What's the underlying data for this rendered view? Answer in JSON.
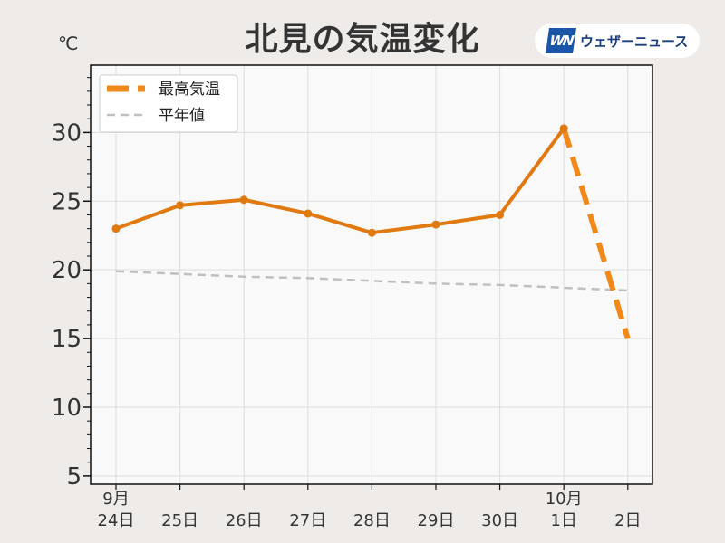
{
  "header": {
    "title": "北見の気温変化",
    "unit": "℃",
    "brand_logo_text": "WN",
    "brand_name": "ウェザーニュース"
  },
  "colors": {
    "background": "#eeebe9",
    "plot_background": "#faf9fa",
    "max_temp": "#e07a10",
    "max_temp_forecast": "#f0881a",
    "normal": "#c0c0c0",
    "grid": "#dddddd",
    "brand": "#1a56a8"
  },
  "chart_data": {
    "type": "line",
    "x_labels": [
      {
        "top": "9月",
        "bottom": "24日"
      },
      {
        "top": "",
        "bottom": "25日"
      },
      {
        "top": "",
        "bottom": "26日"
      },
      {
        "top": "",
        "bottom": "27日"
      },
      {
        "top": "",
        "bottom": "28日"
      },
      {
        "top": "",
        "bottom": "29日"
      },
      {
        "top": "",
        "bottom": "30日"
      },
      {
        "top": "10月",
        "bottom": "1日"
      },
      {
        "top": "",
        "bottom": "2日"
      }
    ],
    "ylabel": "℃",
    "ylim": [
      4.4,
      34.9
    ],
    "yticks": [
      5,
      10,
      15,
      20,
      25,
      30
    ],
    "grid": true,
    "legend_position": "top-left",
    "series": [
      {
        "name": "最高気温",
        "style": "solid",
        "values": [
          23.0,
          24.7,
          25.1,
          24.1,
          22.7,
          23.3,
          24.0,
          30.3,
          null
        ]
      },
      {
        "name": "",
        "style": "dashed",
        "values": [
          null,
          null,
          null,
          null,
          null,
          null,
          null,
          30.3,
          15.0
        ]
      },
      {
        "name": "平年値",
        "style": "dashed",
        "values": [
          19.9,
          19.7,
          19.5,
          19.4,
          19.2,
          19.0,
          18.9,
          18.7,
          18.5
        ]
      }
    ]
  }
}
